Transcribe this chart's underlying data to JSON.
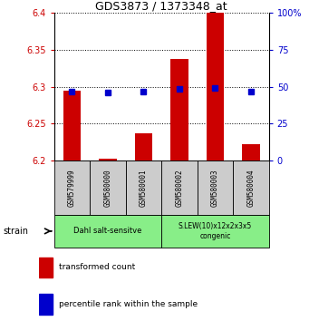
{
  "title": "GDS3873 / 1373348_at",
  "samples": [
    "GSM579999",
    "GSM580000",
    "GSM580001",
    "GSM580002",
    "GSM580003",
    "GSM580004"
  ],
  "red_values": [
    6.295,
    6.202,
    6.237,
    6.338,
    6.4,
    6.222
  ],
  "blue_values": [
    6.293,
    6.292,
    6.293,
    6.297,
    6.298,
    6.293
  ],
  "y_min": 6.2,
  "y_max": 6.4,
  "y_ticks": [
    6.2,
    6.25,
    6.3,
    6.35,
    6.4
  ],
  "y2_ticks": [
    0,
    25,
    50,
    75,
    100
  ],
  "red_color": "#cc0000",
  "blue_color": "#0000cc",
  "bar_bottom": 6.2,
  "group1_label": "Dahl salt-sensitve",
  "group2_label": "S.LEW(10)x12x2x3x5\ncongenic",
  "group_color": "#88ee88",
  "strain_label": "strain",
  "legend_red": "transformed count",
  "legend_blue": "percentile rank within the sample",
  "tick_label_color_left": "#cc0000",
  "tick_label_color_right": "#0000cc",
  "sample_box_color": "#cccccc",
  "figsize": [
    3.41,
    3.54
  ],
  "dpi": 100
}
